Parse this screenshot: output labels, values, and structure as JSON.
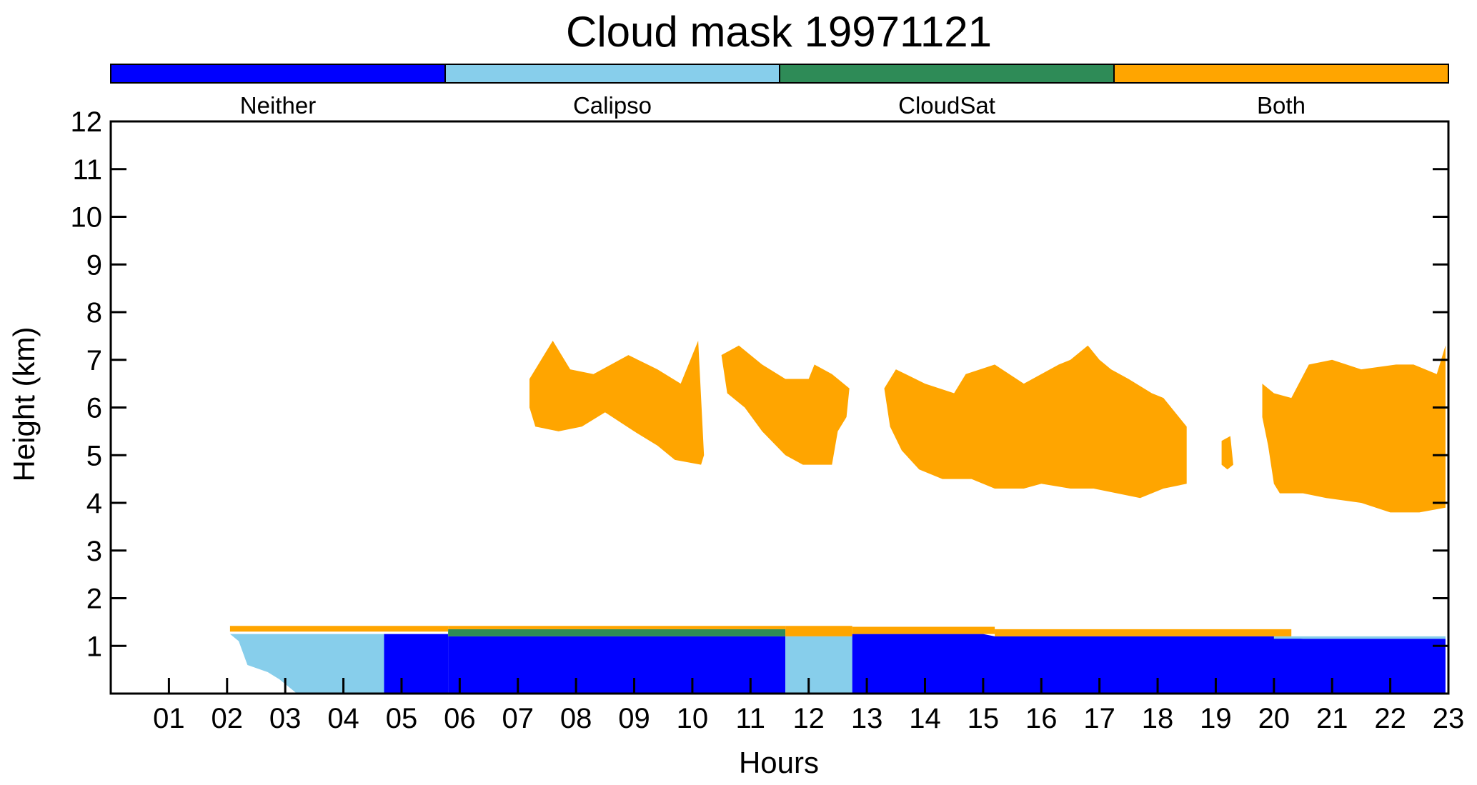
{
  "chart_data": {
    "type": "heatmap",
    "title": "Cloud mask 19971121",
    "xlabel": "Hours",
    "ylabel": "Height (km)",
    "xlim": [
      0,
      23
    ],
    "ylim": [
      0,
      12
    ],
    "xticks": [
      "01",
      "02",
      "03",
      "04",
      "05",
      "06",
      "07",
      "08",
      "09",
      "10",
      "11",
      "12",
      "13",
      "14",
      "15",
      "16",
      "17",
      "18",
      "19",
      "20",
      "21",
      "22",
      "23"
    ],
    "yticks": [
      "1",
      "2",
      "3",
      "4",
      "5",
      "6",
      "7",
      "8",
      "9",
      "10",
      "11",
      "12"
    ],
    "colorbar": {
      "position": "top",
      "categories": [
        {
          "name": "Neither",
          "color": "#0000ff"
        },
        {
          "name": "Calipso",
          "color": "#87ceeb"
        },
        {
          "name": "CloudSat",
          "color": "#2e8b57"
        },
        {
          "name": "Both",
          "color": "#ffa500"
        }
      ]
    },
    "regions": [
      {
        "category": "Calipso",
        "points": [
          [
            2.05,
            1.25
          ],
          [
            2.2,
            1.1
          ],
          [
            2.35,
            0.6
          ],
          [
            2.7,
            0.45
          ],
          [
            2.9,
            0.3
          ],
          [
            3.1,
            0.1
          ],
          [
            3.2,
            0
          ],
          [
            4.7,
            0
          ],
          [
            4.7,
            1.25
          ]
        ]
      },
      {
        "category": "Neither",
        "points": [
          [
            4.7,
            0
          ],
          [
            5.8,
            0
          ],
          [
            5.8,
            1.25
          ],
          [
            4.7,
            1.25
          ]
        ]
      },
      {
        "category": "Neither",
        "points": [
          [
            5.8,
            0
          ],
          [
            11.6,
            0
          ],
          [
            11.6,
            1.2
          ],
          [
            5.8,
            1.2
          ]
        ]
      },
      {
        "category": "Calipso",
        "points": [
          [
            11.6,
            0
          ],
          [
            12.75,
            0
          ],
          [
            12.75,
            1.2
          ],
          [
            11.6,
            1.2
          ]
        ]
      },
      {
        "category": "Neither",
        "points": [
          [
            12.75,
            0
          ],
          [
            22.95,
            0
          ],
          [
            22.95,
            1.15
          ],
          [
            20.5,
            1.15
          ],
          [
            20,
            1.2
          ],
          [
            15.2,
            1.2
          ],
          [
            15,
            1.25
          ],
          [
            12.75,
            1.25
          ]
        ]
      },
      {
        "category": "Calipso",
        "points": [
          [
            20.0,
            1.15
          ],
          [
            22.95,
            1.15
          ],
          [
            22.95,
            1.2
          ],
          [
            20.0,
            1.2
          ]
        ]
      },
      {
        "category": "CloudSat",
        "points": [
          [
            5.8,
            1.2
          ],
          [
            11.6,
            1.2
          ],
          [
            11.6,
            1.35
          ],
          [
            5.8,
            1.35
          ]
        ]
      },
      {
        "category": "Both",
        "points": [
          [
            2.05,
            1.3
          ],
          [
            5.8,
            1.3
          ],
          [
            5.8,
            1.42
          ],
          [
            2.05,
            1.42
          ]
        ]
      },
      {
        "category": "Both",
        "points": [
          [
            5.8,
            1.35
          ],
          [
            11.6,
            1.35
          ],
          [
            11.6,
            1.42
          ],
          [
            5.8,
            1.42
          ]
        ]
      },
      {
        "category": "Both",
        "points": [
          [
            11.6,
            1.2
          ],
          [
            12.75,
            1.2
          ],
          [
            12.75,
            1.42
          ],
          [
            11.6,
            1.42
          ]
        ]
      },
      {
        "category": "Both",
        "points": [
          [
            12.75,
            1.25
          ],
          [
            15.2,
            1.25
          ],
          [
            15.2,
            1.4
          ],
          [
            12.75,
            1.4
          ]
        ]
      },
      {
        "category": "Both",
        "points": [
          [
            15.2,
            1.2
          ],
          [
            20.3,
            1.2
          ],
          [
            20.3,
            1.35
          ],
          [
            15.2,
            1.35
          ]
        ]
      },
      {
        "category": "Both",
        "points": [
          [
            7.2,
            6.6
          ],
          [
            7.6,
            7.4
          ],
          [
            7.9,
            6.8
          ],
          [
            8.3,
            6.7
          ],
          [
            8.9,
            7.1
          ],
          [
            9.4,
            6.8
          ],
          [
            9.8,
            6.5
          ],
          [
            10.1,
            7.4
          ],
          [
            10.2,
            5.0
          ],
          [
            10.15,
            4.8
          ],
          [
            9.7,
            4.9
          ],
          [
            9.4,
            5.2
          ],
          [
            9.0,
            5.5
          ],
          [
            8.5,
            5.9
          ],
          [
            8.1,
            5.6
          ],
          [
            7.7,
            5.5
          ],
          [
            7.3,
            5.6
          ],
          [
            7.2,
            6.0
          ]
        ]
      },
      {
        "category": "Both",
        "points": [
          [
            10.5,
            7.1
          ],
          [
            10.8,
            7.3
          ],
          [
            11.2,
            6.9
          ],
          [
            11.6,
            6.6
          ],
          [
            12.0,
            6.6
          ],
          [
            12.1,
            6.9
          ],
          [
            12.4,
            6.7
          ],
          [
            12.7,
            6.4
          ],
          [
            12.65,
            5.8
          ],
          [
            12.5,
            5.5
          ],
          [
            12.4,
            4.8
          ],
          [
            11.9,
            4.8
          ],
          [
            11.6,
            5.0
          ],
          [
            11.2,
            5.5
          ],
          [
            10.9,
            6.0
          ],
          [
            10.6,
            6.3
          ]
        ]
      },
      {
        "category": "Both",
        "points": [
          [
            13.3,
            6.4
          ],
          [
            13.5,
            6.8
          ],
          [
            14.0,
            6.5
          ],
          [
            14.5,
            6.3
          ],
          [
            14.7,
            6.7
          ],
          [
            15.2,
            6.9
          ],
          [
            15.7,
            6.5
          ],
          [
            16.3,
            6.9
          ],
          [
            16.5,
            7.0
          ],
          [
            16.8,
            7.3
          ],
          [
            17.0,
            7.0
          ],
          [
            17.2,
            6.8
          ],
          [
            17.5,
            6.6
          ],
          [
            17.9,
            6.3
          ],
          [
            18.1,
            6.2
          ],
          [
            18.5,
            5.6
          ],
          [
            18.5,
            4.4
          ],
          [
            18.1,
            4.3
          ],
          [
            17.7,
            4.1
          ],
          [
            17.3,
            4.2
          ],
          [
            16.9,
            4.3
          ],
          [
            16.5,
            4.3
          ],
          [
            16.0,
            4.4
          ],
          [
            15.7,
            4.3
          ],
          [
            15.2,
            4.3
          ],
          [
            14.8,
            4.5
          ],
          [
            14.3,
            4.5
          ],
          [
            13.9,
            4.7
          ],
          [
            13.6,
            5.1
          ],
          [
            13.4,
            5.6
          ]
        ]
      },
      {
        "category": "Both",
        "points": [
          [
            19.1,
            5.3
          ],
          [
            19.25,
            5.4
          ],
          [
            19.3,
            4.8
          ],
          [
            19.2,
            4.7
          ],
          [
            19.1,
            4.8
          ]
        ]
      },
      {
        "category": "Both",
        "points": [
          [
            19.8,
            6.5
          ],
          [
            20.0,
            6.3
          ],
          [
            20.3,
            6.2
          ],
          [
            20.6,
            6.9
          ],
          [
            21.0,
            7.0
          ],
          [
            21.5,
            6.8
          ],
          [
            22.1,
            6.9
          ],
          [
            22.4,
            6.9
          ],
          [
            22.8,
            6.7
          ],
          [
            22.95,
            7.3
          ],
          [
            22.95,
            3.9
          ],
          [
            22.5,
            3.8
          ],
          [
            22.0,
            3.8
          ],
          [
            21.5,
            4.0
          ],
          [
            20.9,
            4.1
          ],
          [
            20.5,
            4.2
          ],
          [
            20.1,
            4.2
          ],
          [
            20.0,
            4.4
          ],
          [
            19.9,
            5.2
          ],
          [
            19.8,
            5.8
          ]
        ]
      }
    ]
  }
}
